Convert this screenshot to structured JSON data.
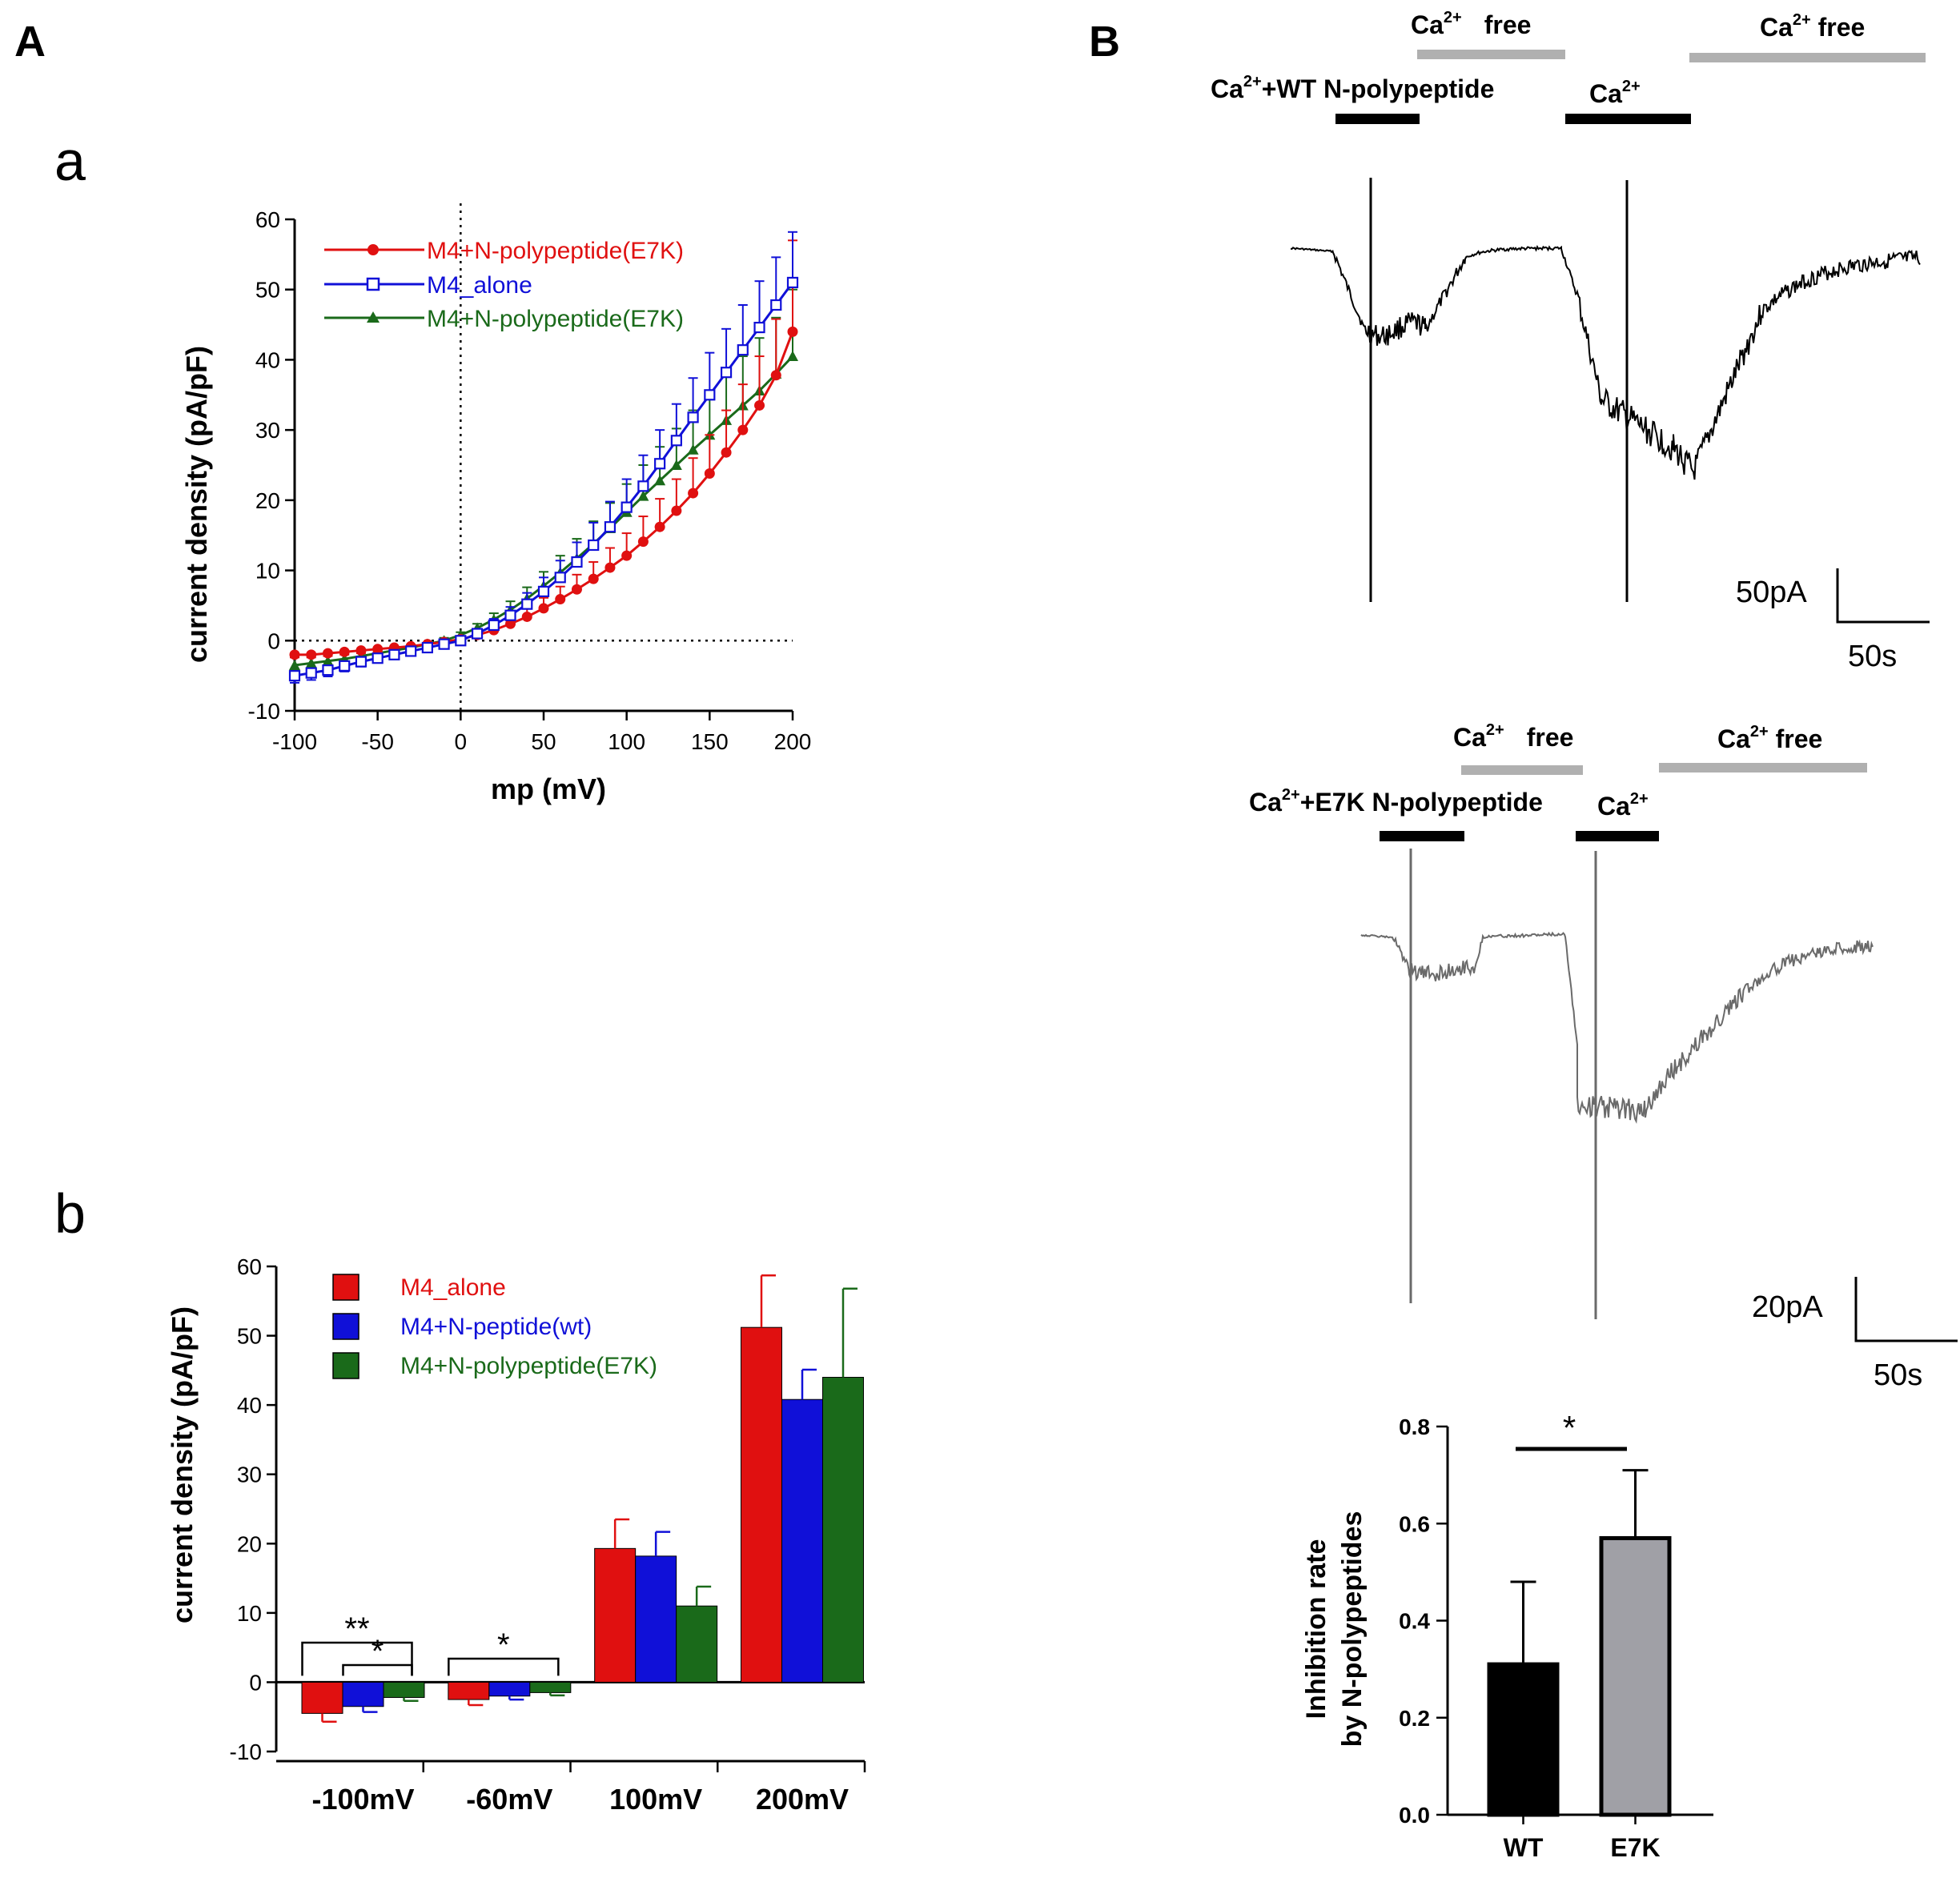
{
  "panels": {
    "A": "A",
    "B": "B",
    "a": "a",
    "b": "b"
  },
  "colors": {
    "red": "#e01010",
    "blue": "#1010d8",
    "green": "#1a6a1a",
    "black": "#000000",
    "gray": "#a0a0a6",
    "lightgray": "#b0b0b0",
    "tracegray": "#6a6a6a"
  },
  "chart_data": [
    {
      "id": "iv-curve",
      "type": "line",
      "xlabel": "mp (mV)",
      "ylabel": "current density (pA/pF)",
      "xlim": [
        -100,
        200
      ],
      "ylim": [
        -10,
        60
      ],
      "xticks": [
        -100,
        -50,
        0,
        50,
        100,
        150,
        200
      ],
      "yticks": [
        -10,
        0,
        10,
        20,
        30,
        40,
        50,
        60
      ],
      "x": [
        -100,
        -90,
        -80,
        -70,
        -60,
        -50,
        -40,
        -30,
        -20,
        -10,
        0,
        10,
        20,
        30,
        40,
        50,
        60,
        70,
        80,
        90,
        100,
        110,
        120,
        130,
        140,
        150,
        160,
        170,
        180,
        190,
        200
      ],
      "series": [
        {
          "name": "M4+N-polypeptide(E7K)",
          "marker": "circle",
          "color": "red",
          "values": [
            -2,
            -2,
            -1.8,
            -1.6,
            -1.4,
            -1.2,
            -1,
            -0.8,
            -0.5,
            -0.2,
            0.2,
            0.8,
            1.5,
            2.4,
            3.4,
            4.6,
            5.9,
            7.3,
            8.8,
            10.4,
            12.1,
            14.1,
            16.2,
            18.5,
            21,
            23.8,
            26.8,
            30,
            33.5,
            37.8,
            44
          ],
          "errors": [
            0.4,
            0.4,
            0.4,
            0.4,
            0.4,
            0.4,
            0.4,
            0.4,
            0.4,
            0.4,
            0.4,
            0.6,
            0.8,
            1,
            1.2,
            1.5,
            1.8,
            2.1,
            2.4,
            2.8,
            3.2,
            3.6,
            4,
            4.5,
            5,
            5.5,
            6,
            6.5,
            7,
            8,
            13
          ]
        },
        {
          "name": "M4_alone",
          "marker": "open-square",
          "color": "blue",
          "values": [
            -5,
            -4.6,
            -4.2,
            -3.6,
            -3,
            -2.5,
            -2,
            -1.5,
            -1,
            -0.5,
            0,
            1,
            2.2,
            3.6,
            5.2,
            7,
            9,
            11.2,
            13.6,
            16.2,
            19,
            22,
            25.2,
            28.5,
            31.8,
            35,
            38.2,
            41.4,
            44.6,
            47.8,
            51
          ],
          "errors": [
            1,
            1,
            0.9,
            0.8,
            0.7,
            0.6,
            0.5,
            0.5,
            0.4,
            0.4,
            0.4,
            0.6,
            0.9,
            1.2,
            1.6,
            2,
            2.4,
            2.8,
            3.2,
            3.6,
            4,
            4.4,
            4.8,
            5.2,
            5.6,
            6,
            6.2,
            6.4,
            6.6,
            6.8,
            7.2
          ]
        },
        {
          "name": "M4+N-polypeptide(E7K)",
          "marker": "triangle",
          "color": "green",
          "values": [
            -3.5,
            -3.2,
            -2.9,
            -2.6,
            -2.2,
            -1.8,
            -1.4,
            -1,
            -0.5,
            0,
            0.8,
            1.8,
            3,
            4.4,
            6,
            7.8,
            9.7,
            11.7,
            13.8,
            16,
            18.3,
            20.6,
            22.8,
            25,
            27.2,
            29.3,
            31.4,
            33.5,
            35.6,
            38,
            40.5
          ],
          "errors": [
            0.8,
            0.8,
            0.7,
            0.7,
            0.6,
            0.6,
            0.5,
            0.5,
            0.4,
            0.4,
            0.4,
            0.6,
            0.9,
            1.2,
            1.6,
            2,
            2.4,
            2.8,
            3.2,
            3.6,
            4,
            4.4,
            4.8,
            5.2,
            5.6,
            6,
            6.5,
            7,
            7.5,
            8,
            9.5
          ]
        }
      ]
    },
    {
      "id": "bar-voltage",
      "type": "bar",
      "ylabel": "current density (pA/pF)",
      "ylim": [
        -10,
        60
      ],
      "yticks": [
        -10,
        0,
        10,
        20,
        30,
        40,
        50,
        60
      ],
      "categories": [
        "-100mV",
        "-60mV",
        "100mV",
        "200mV"
      ],
      "series": [
        {
          "name": "M4_alone",
          "color": "red",
          "values": [
            -4.5,
            -2.5,
            19.3,
            51.2
          ],
          "errors": [
            1.2,
            0.8,
            4.2,
            7.5
          ]
        },
        {
          "name": "M4+N-peptide(wt)",
          "color": "blue",
          "values": [
            -3.5,
            -2,
            18.2,
            40.8
          ],
          "errors": [
            0.8,
            0.5,
            3.5,
            4.3
          ]
        },
        {
          "name": "M4+N-polypeptide(E7K)",
          "color": "green",
          "values": [
            -2.2,
            -1.5,
            11,
            44
          ],
          "errors": [
            0.5,
            0.4,
            2.8,
            12.8
          ]
        }
      ],
      "significance": [
        {
          "label": "**",
          "category": "-100mV",
          "from": "M4_alone",
          "to": "M4+N-polypeptide(E7K)"
        },
        {
          "label": "*",
          "category": "-100mV",
          "from": "M4+N-peptide(wt)",
          "to": "M4+N-polypeptide(E7K)"
        },
        {
          "label": "*",
          "category": "-60mV",
          "from": "M4_alone",
          "to": "M4+N-polypeptide(E7K)"
        }
      ]
    },
    {
      "id": "inhibition-rate",
      "type": "bar",
      "ylabel_lines": [
        "Inhibition rate",
        "by N-polypeptides"
      ],
      "ylim": [
        0,
        0.8
      ],
      "yticks": [
        "0.0",
        "0.2",
        "0.4",
        "0.6",
        "0.8"
      ],
      "categories": [
        "WT",
        "E7K"
      ],
      "values": [
        0.31,
        0.57
      ],
      "errors": [
        0.17,
        0.14
      ],
      "bar_colors": [
        "black",
        "gray"
      ],
      "significance": [
        {
          "label": "*",
          "from": "WT",
          "to": "E7K"
        }
      ]
    }
  ],
  "traces": {
    "top": {
      "labels": {
        "ca_free_1": "free",
        "ca_free_2": "Ca",
        "ca_free_2_sup": "2+",
        "ca_free_2_rest": " free",
        "ca_label_1": "Ca",
        "ca_label_1_sup": "2+",
        "treatment_ca": "Ca",
        "treatment_sup": "2+",
        "treatment_rest": "+WT N-polypeptide",
        "ca_only": "Ca",
        "ca_only_sup": "2+"
      },
      "scale_current": "50pA",
      "scale_time": "50s"
    },
    "bottom": {
      "labels": {
        "ca_free_1": "free",
        "ca_free_2": "Ca",
        "ca_free_2_sup": "2+",
        "ca_free_2_rest": " free",
        "ca_label_1": "Ca",
        "ca_label_1_sup": "2+",
        "treatment_ca": "Ca",
        "treatment_sup": "2+",
        "treatment_rest": "+E7K N-polypeptide",
        "ca_only": "Ca",
        "ca_only_sup": "2+"
      },
      "scale_current": "20pA",
      "scale_time": "50s"
    }
  }
}
